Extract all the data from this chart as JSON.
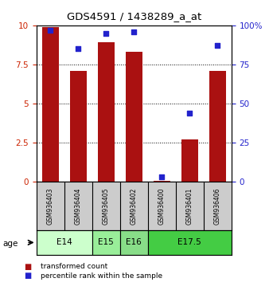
{
  "title": "GDS4591 / 1438289_a_at",
  "samples": [
    "GSM936403",
    "GSM936404",
    "GSM936405",
    "GSM936402",
    "GSM936400",
    "GSM936401",
    "GSM936406"
  ],
  "transformed_count": [
    9.9,
    7.1,
    8.9,
    8.3,
    0.05,
    2.7,
    7.1
  ],
  "percentile_rank": [
    97,
    85,
    95,
    96,
    3,
    44,
    87
  ],
  "age_groups": [
    {
      "label": "E14",
      "span": [
        0,
        2
      ],
      "color": "#ccffcc"
    },
    {
      "label": "E15",
      "span": [
        2,
        3
      ],
      "color": "#99ee99"
    },
    {
      "label": "E16",
      "span": [
        3,
        4
      ],
      "color": "#88dd88"
    },
    {
      "label": "E17.5",
      "span": [
        4,
        7
      ],
      "color": "#44cc44"
    }
  ],
  "ylim_left": [
    0,
    10
  ],
  "ylim_right": [
    0,
    100
  ],
  "yticks_left": [
    0,
    2.5,
    5,
    7.5,
    10
  ],
  "yticks_right": [
    0,
    25,
    50,
    75,
    100
  ],
  "bar_color": "#aa1111",
  "dot_color": "#2222cc",
  "background_color": "#ffffff",
  "label_transformed": "transformed count",
  "label_percentile": "percentile rank within the sample",
  "age_label": "age"
}
